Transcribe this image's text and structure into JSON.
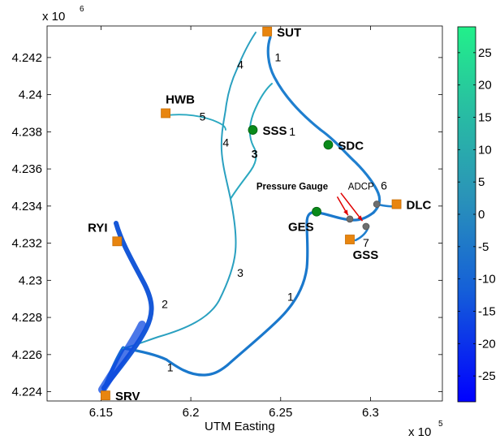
{
  "figure": {
    "y_exponent_label": "x 10",
    "y_exponent_power": "6",
    "x_exponent_label": "x 10",
    "x_exponent_power": "5",
    "xlabel": "UTM Easting"
  },
  "chart_data": {
    "type": "map",
    "xlim": [
      6.12,
      6.34
    ],
    "ylim": [
      4.2235,
      4.2437
    ],
    "x_ticks": [
      {
        "value": 6.15,
        "label": "6.15"
      },
      {
        "value": 6.2,
        "label": "6.2"
      },
      {
        "value": 6.25,
        "label": "6.25"
      },
      {
        "value": 6.3,
        "label": "6.3"
      }
    ],
    "y_ticks": [
      {
        "value": 4.224,
        "label": "4.224"
      },
      {
        "value": 4.226,
        "label": "4.226"
      },
      {
        "value": 4.228,
        "label": "4.228"
      },
      {
        "value": 4.23,
        "label": "4.23"
      },
      {
        "value": 4.232,
        "label": "4.232"
      },
      {
        "value": 4.234,
        "label": "4.234"
      },
      {
        "value": 4.236,
        "label": "4.236"
      },
      {
        "value": 4.238,
        "label": "4.238"
      },
      {
        "value": 4.24,
        "label": "4.24"
      },
      {
        "value": 4.242,
        "label": "4.242"
      }
    ],
    "colorbar": {
      "min": -29,
      "max": 29,
      "colors": [
        "#0000ff",
        "#1a6acc",
        "#2a9fb0",
        "#22f08a"
      ],
      "ticks": [
        {
          "value": 25,
          "label": "25"
        },
        {
          "value": 20,
          "label": "20"
        },
        {
          "value": 15,
          "label": "15"
        },
        {
          "value": 10,
          "label": "10"
        },
        {
          "value": 5,
          "label": "5"
        },
        {
          "value": 0,
          "label": "0"
        },
        {
          "value": -5,
          "label": "-5"
        },
        {
          "value": -10,
          "label": "-10"
        },
        {
          "value": -15,
          "label": "-15"
        },
        {
          "value": -20,
          "label": "-20"
        },
        {
          "value": -25,
          "label": "-25"
        }
      ]
    },
    "stations": [
      {
        "name": "SUT",
        "x": 6.2425,
        "y": 4.2434,
        "kind": "square",
        "label_dx": 1,
        "label_dy": 0
      },
      {
        "name": "HWB",
        "x": 6.186,
        "y": 4.239,
        "kind": "square",
        "label_dx": 0,
        "label_dy": -1
      },
      {
        "name": "SSS",
        "x": 6.2345,
        "y": 4.2381,
        "kind": "circle",
        "label_dx": 1,
        "label_dy": 0
      },
      {
        "name": "SDC",
        "x": 6.2765,
        "y": 4.2373,
        "kind": "circle",
        "label_dx": 1,
        "label_dy": 0
      },
      {
        "name": "DLC",
        "x": 6.3145,
        "y": 4.2341,
        "kind": "square",
        "label_dx": 1,
        "label_dy": 0
      },
      {
        "name": "GES",
        "x": 6.27,
        "y": 4.2337,
        "kind": "circle",
        "label_dx": -0.6,
        "label_dy": 1
      },
      {
        "name": "GSS",
        "x": 6.2885,
        "y": 4.2322,
        "kind": "square",
        "label_dx": 0.3,
        "label_dy": 1
      },
      {
        "name": "RYI",
        "x": 6.159,
        "y": 4.2321,
        "kind": "square",
        "label_dx": -1,
        "label_dy": -1
      },
      {
        "name": "SRV",
        "x": 6.1525,
        "y": 4.2238,
        "kind": "square",
        "label_dx": 1,
        "label_dy": 0
      }
    ],
    "gauges": [
      {
        "x": 6.2885,
        "y": 4.2333
      },
      {
        "x": 6.2975,
        "y": 4.2329
      },
      {
        "x": 6.3035,
        "y": 4.2341
      }
    ],
    "reach_labels": [
      {
        "text": "1",
        "x": 6.2485,
        "y": 4.2418
      },
      {
        "text": "1",
        "x": 6.2565,
        "y": 4.2378
      },
      {
        "text": "1",
        "x": 6.2555,
        "y": 4.2289
      },
      {
        "text": "1",
        "x": 6.1885,
        "y": 4.2251
      },
      {
        "text": "2",
        "x": 6.1855,
        "y": 4.2285
      },
      {
        "text": "3",
        "x": 6.2355,
        "y": 4.2366
      },
      {
        "text": "3",
        "x": 6.2275,
        "y": 4.2302
      },
      {
        "text": "4",
        "x": 6.2275,
        "y": 4.2414
      },
      {
        "text": "4",
        "x": 6.2195,
        "y": 4.2372
      },
      {
        "text": "5",
        "x": 6.2065,
        "y": 4.2386
      },
      {
        "text": "6",
        "x": 6.3075,
        "y": 4.2349
      },
      {
        "text": "7",
        "x": 6.2975,
        "y": 4.2318
      }
    ],
    "annotations": [
      {
        "text": "Pressure Gauge",
        "x": 6.2365,
        "y": 4.2349
      },
      {
        "text": "ADCP",
        "x": 6.2875,
        "y": 4.2349
      }
    ],
    "arrows": [
      {
        "from": [
          6.2835,
          4.2347
        ],
        "to": [
          6.2955,
          4.2332
        ],
        "color": "#e00000"
      },
      {
        "from": [
          6.2815,
          4.2345
        ],
        "to": [
          6.2875,
          4.2335
        ],
        "color": "#e00000"
      }
    ]
  }
}
